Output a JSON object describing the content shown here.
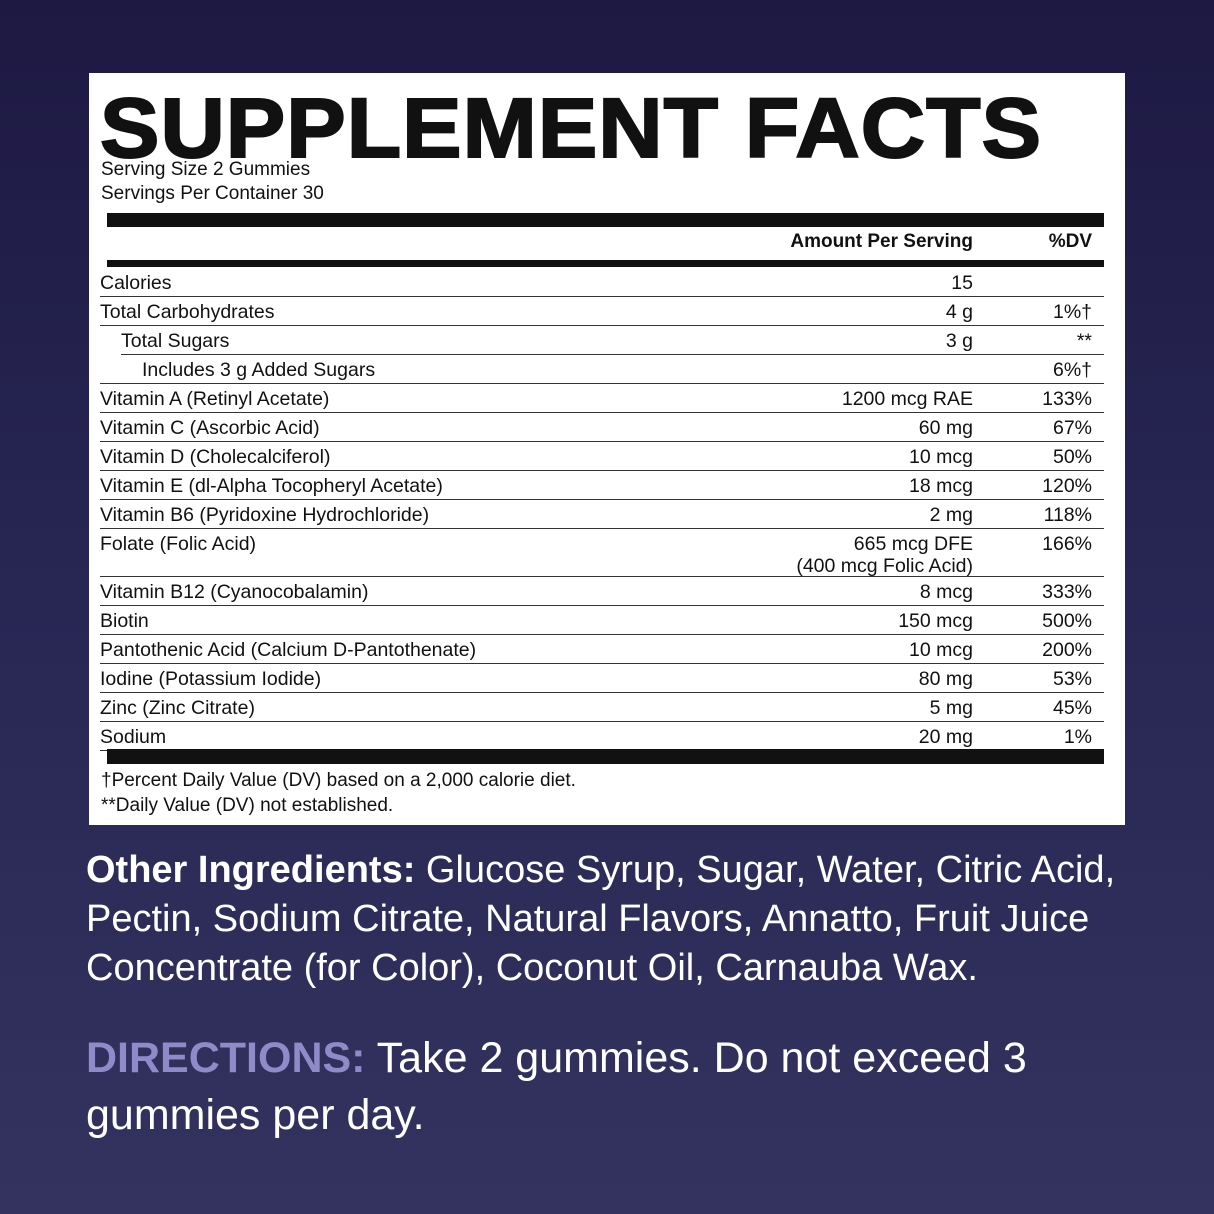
{
  "title": "SUPPLEMENT FACTS",
  "serving_size": "Serving Size 2 Gummies",
  "servings_per_container": "Servings Per Container 30",
  "headers": {
    "amount": "Amount Per Serving",
    "dv": "%DV"
  },
  "rows": [
    {
      "name": "Calories",
      "amount": "15",
      "dv": ""
    },
    {
      "name": "Total Carbohydrates",
      "amount": "4 g",
      "dv": "1%†"
    },
    {
      "name": "Total Sugars",
      "amount": "3 g",
      "dv": "**"
    },
    {
      "name": "Includes 3 g Added Sugars",
      "amount": "",
      "dv": "6%†"
    },
    {
      "name": "Vitamin A (Retinyl Acetate)",
      "amount": "1200 mcg RAE",
      "dv": "133%"
    },
    {
      "name": "Vitamin C (Ascorbic Acid)",
      "amount": "60 mg",
      "dv": "67%"
    },
    {
      "name": "Vitamin D (Cholecalciferol)",
      "amount": "10 mcg",
      "dv": "50%"
    },
    {
      "name": "Vitamin E (dl-Alpha Tocopheryl Acetate)",
      "amount": "18 mcg",
      "dv": "120%"
    },
    {
      "name": "Vitamin B6 (Pyridoxine Hydrochloride)",
      "amount": "2 mg",
      "dv": "118%"
    },
    {
      "name": "Folate (Folic Acid)",
      "amount": "665 mcg DFE",
      "amount2": "(400 mcg Folic Acid)",
      "dv": "166%"
    },
    {
      "name": "Vitamin B12 (Cyanocobalamin)",
      "amount": "8 mcg",
      "dv": "333%"
    },
    {
      "name": "Biotin",
      "amount": "150 mcg",
      "dv": "500%"
    },
    {
      "name": "Pantothenic Acid (Calcium D-Pantothenate)",
      "amount": "10 mcg",
      "dv": "200%"
    },
    {
      "name": "Iodine (Potassium Iodide)",
      "amount": "80 mg",
      "dv": "53%"
    },
    {
      "name": "Zinc (Zinc Citrate)",
      "amount": "5 mg",
      "dv": "45%"
    },
    {
      "name": "Sodium",
      "amount": "20 mg",
      "dv": "1%"
    }
  ],
  "footnotes": [
    "†Percent Daily Value (DV) based on a 2,000 calorie diet.",
    "**Daily Value (DV) not established."
  ],
  "other_ingredients": {
    "label": "Other Ingredients:",
    "text": " Glucose Syrup, Sugar, Water, Citric Acid, Pectin, Sodium  Citrate, Natural  Flavors, Annatto, Fruit Juice Concentrate (for Color), Coconut Oil, Carnauba Wax."
  },
  "directions": {
    "label": "DIRECTIONS:",
    "text": " Take 2 gummies. Do not exceed 3 gummies per day."
  },
  "colors": {
    "background": "#272552",
    "directions_label": "#8e8cc8",
    "panel": "#ffffff"
  }
}
